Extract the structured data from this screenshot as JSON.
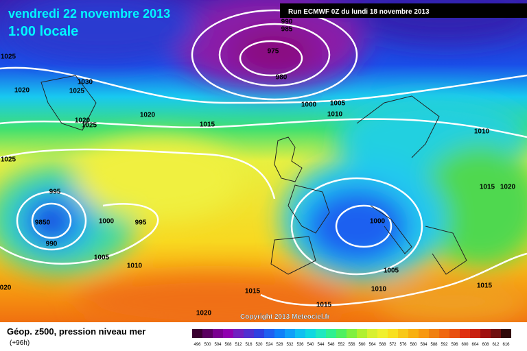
{
  "header": {
    "date": "vendredi 22 novembre 2013",
    "time": "1:00 locale",
    "run": "Run ECMWF 0Z du lundi 18 novembre 2013"
  },
  "isobar_labels": [
    "990",
    "985",
    "975",
    "980",
    "1025",
    "1030",
    "1025",
    "1020",
    "1020",
    "1025",
    "1020",
    "1015",
    "1000",
    "1005",
    "1010",
    "1010",
    "1025",
    "995",
    "9850",
    "1000",
    "995",
    "990",
    "1005",
    "1010",
    "1000",
    "1015",
    "1020",
    "1005",
    "1010",
    "1015",
    "1015",
    "1020",
    "1015",
    "020"
  ],
  "copyright": "Copyright 2013 Meteociel.fr",
  "footer": {
    "title": "Géop. z500, pression niveau mer",
    "lead": "(+96h)"
  },
  "colorbar_labels": [
    "496",
    "500",
    "504",
    "508",
    "512",
    "516",
    "520",
    "524",
    "528",
    "532",
    "536",
    "540",
    "544",
    "548",
    "552",
    "556",
    "560",
    "564",
    "568",
    "572",
    "576",
    "580",
    "584",
    "588",
    "592",
    "596",
    "600",
    "604",
    "608",
    "612",
    "616"
  ]
}
